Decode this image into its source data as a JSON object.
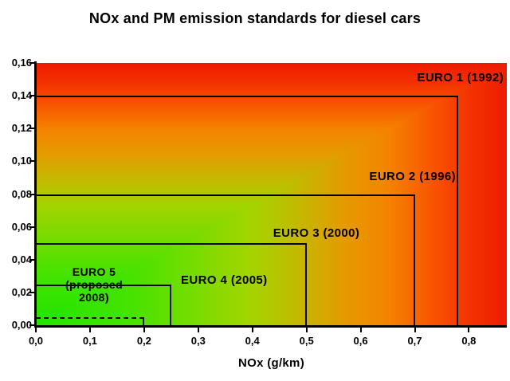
{
  "title": "NOx and PM emission standards for diesel cars",
  "chart_data": {
    "type": "area",
    "subtype": "nested-limit-rectangles",
    "title": "NOx and PM emission standards for diesel cars",
    "xlabel": "NOx (g/km)",
    "ylabel": "",
    "xlim": [
      0,
      0.87
    ],
    "ylim": [
      0,
      0.16
    ],
    "grid": false,
    "legend": false,
    "x_tick_values": [
      0.0,
      0.1,
      0.2,
      0.3,
      0.4,
      0.5,
      0.6,
      0.7,
      0.8
    ],
    "x_tick_labels": [
      "0,0",
      "0,1",
      "0,2",
      "0,3",
      "0,4",
      "0,5",
      "0,6",
      "0,7",
      "0,8"
    ],
    "y_tick_values": [
      0.0,
      0.02,
      0.04,
      0.06,
      0.08,
      0.1,
      0.12,
      0.14,
      0.16
    ],
    "y_tick_labels": [
      "0,00",
      "0,02",
      "0,04",
      "0,06",
      "0,08",
      "0,10",
      "0,12",
      "0,14",
      "0,16"
    ],
    "standards": [
      {
        "id": "euro1",
        "label": "EURO 1 (1992)",
        "nox": 0.78,
        "pm": 0.14,
        "line": "solid"
      },
      {
        "id": "euro2",
        "label": "EURO 2 (1996)",
        "nox": 0.7,
        "pm": 0.08,
        "line": "solid"
      },
      {
        "id": "euro3",
        "label": "EURO 3 (2000)",
        "nox": 0.5,
        "pm": 0.05,
        "line": "solid"
      },
      {
        "id": "euro4",
        "label": "EURO 4 (2005)",
        "nox": 0.25,
        "pm": 0.025,
        "line": "solid"
      },
      {
        "id": "euro5",
        "label": "EURO 5 (proposed 2008)",
        "label_lines": [
          "EURO 5",
          "(proposed",
          "2008)"
        ],
        "nox": 0.2,
        "pm": 0.005,
        "line": "dashed"
      }
    ],
    "colors": {
      "text": "#000000",
      "axis": "#000000",
      "rect_border": "#000000",
      "page_background": "#ffffff",
      "gradient_mapping": "max(NOx/xmax, PM/ymax)",
      "gradient_stops": [
        {
          "v": 0.0,
          "color": "#22e500"
        },
        {
          "v": 0.2,
          "color": "#46e300"
        },
        {
          "v": 0.35,
          "color": "#7ddb00"
        },
        {
          "v": 0.46,
          "color": "#a5d400"
        },
        {
          "v": 0.55,
          "color": "#c2bb00"
        },
        {
          "v": 0.65,
          "color": "#e39c00"
        },
        {
          "v": 0.75,
          "color": "#f58300"
        },
        {
          "v": 0.85,
          "color": "#f85200"
        },
        {
          "v": 0.93,
          "color": "#f43000"
        },
        {
          "v": 1.0,
          "color": "#ee1c00"
        }
      ]
    }
  }
}
